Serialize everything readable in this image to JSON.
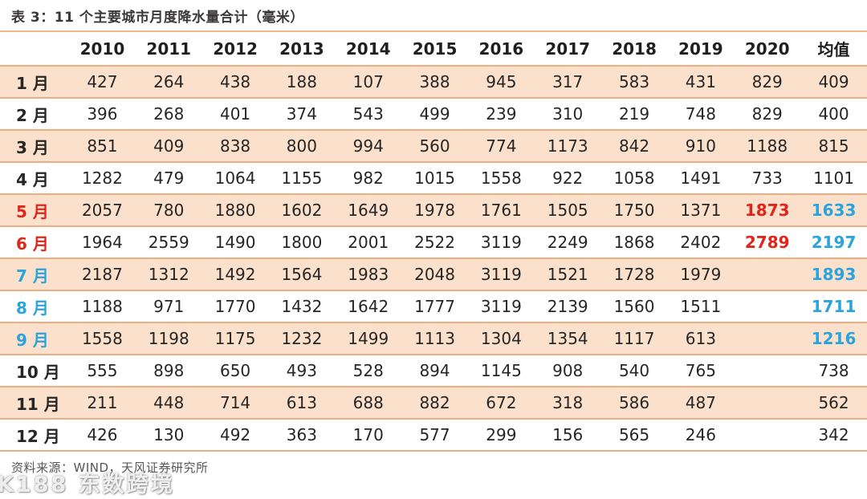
{
  "title": "表 3：11 个主要城市月度降水量合计（毫米）",
  "source": "资料来源：WIND，天风证券研究所",
  "watermark": "K188 东数跨境",
  "colors": {
    "highlight_red": "#e1251a",
    "highlight_blue": "#2ba4dc",
    "zebra_fill": "#fbe0cb",
    "rule_orange": "#efae82",
    "title_text": "#3b3838",
    "body_text": "#262626",
    "source_text": "#595757"
  },
  "chart_data": {
    "type": "table",
    "title": "表 3：11 个主要城市月度降水量合计（毫米）",
    "columns": [
      "",
      "2010",
      "2011",
      "2012",
      "2013",
      "2014",
      "2015",
      "2016",
      "2017",
      "2018",
      "2019",
      "2020",
      "均值"
    ],
    "rows": [
      {
        "label": "1 月",
        "label_class": "",
        "values": [
          "427",
          "264",
          "438",
          "188",
          "107",
          "388",
          "945",
          "317",
          "583",
          "431",
          "829",
          "409"
        ],
        "red_cols": [],
        "blue_cols": []
      },
      {
        "label": "2 月",
        "label_class": "",
        "values": [
          "396",
          "268",
          "401",
          "374",
          "543",
          "499",
          "239",
          "310",
          "219",
          "748",
          "829",
          "400"
        ],
        "red_cols": [],
        "blue_cols": []
      },
      {
        "label": "3 月",
        "label_class": "",
        "values": [
          "851",
          "409",
          "838",
          "800",
          "994",
          "560",
          "774",
          "1173",
          "842",
          "910",
          "1188",
          "815"
        ],
        "red_cols": [],
        "blue_cols": []
      },
      {
        "label": "4 月",
        "label_class": "",
        "values": [
          "1282",
          "479",
          "1064",
          "1155",
          "982",
          "1015",
          "1558",
          "922",
          "1058",
          "1491",
          "733",
          "1101"
        ],
        "red_cols": [],
        "blue_cols": []
      },
      {
        "label": "5 月",
        "label_class": "label-red",
        "values": [
          "2057",
          "780",
          "1880",
          "1602",
          "1649",
          "1978",
          "1761",
          "1505",
          "1750",
          "1371",
          "1873",
          "1633"
        ],
        "red_cols": [
          10
        ],
        "blue_cols": [
          11
        ]
      },
      {
        "label": "6 月",
        "label_class": "label-red",
        "values": [
          "1964",
          "2559",
          "1490",
          "1800",
          "2001",
          "2522",
          "3119",
          "2249",
          "1868",
          "2402",
          "2789",
          "2197"
        ],
        "red_cols": [
          10
        ],
        "blue_cols": [
          11
        ]
      },
      {
        "label": "7 月",
        "label_class": "label-blue",
        "values": [
          "2187",
          "1312",
          "1492",
          "1564",
          "1983",
          "2048",
          "3119",
          "1521",
          "1728",
          "1979",
          "",
          "1893"
        ],
        "red_cols": [],
        "blue_cols": [
          11
        ]
      },
      {
        "label": "8 月",
        "label_class": "label-blue",
        "values": [
          "1188",
          "971",
          "1770",
          "1432",
          "1642",
          "1777",
          "3119",
          "2139",
          "1560",
          "1511",
          "",
          "1711"
        ],
        "red_cols": [],
        "blue_cols": [
          11
        ]
      },
      {
        "label": "9 月",
        "label_class": "label-blue",
        "values": [
          "1558",
          "1198",
          "1175",
          "1232",
          "1499",
          "1113",
          "1304",
          "1354",
          "1117",
          "613",
          "",
          "1216"
        ],
        "red_cols": [],
        "blue_cols": [
          11
        ]
      },
      {
        "label": "10 月",
        "label_class": "",
        "values": [
          "555",
          "898",
          "650",
          "493",
          "528",
          "894",
          "1145",
          "908",
          "540",
          "765",
          "",
          "738"
        ],
        "red_cols": [],
        "blue_cols": []
      },
      {
        "label": "11 月",
        "label_class": "",
        "values": [
          "211",
          "448",
          "714",
          "613",
          "688",
          "882",
          "672",
          "318",
          "586",
          "487",
          "",
          "562"
        ],
        "red_cols": [],
        "blue_cols": []
      },
      {
        "label": "12 月",
        "label_class": "",
        "values": [
          "426",
          "130",
          "492",
          "363",
          "170",
          "577",
          "299",
          "156",
          "565",
          "246",
          "",
          "342"
        ],
        "red_cols": [],
        "blue_cols": []
      }
    ]
  }
}
